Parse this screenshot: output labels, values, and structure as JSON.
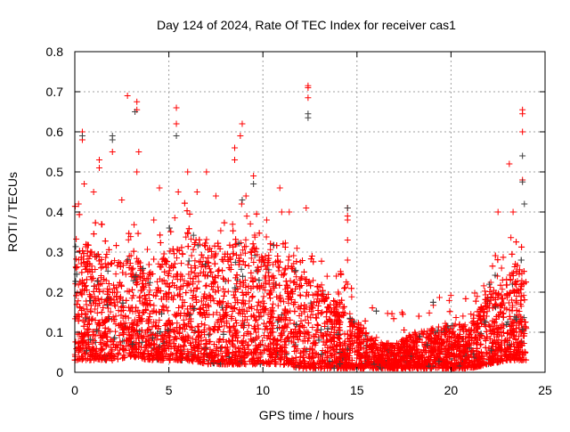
{
  "chart_data": {
    "type": "scatter",
    "title": "Day 124 of 2024, Rate Of TEC Index for receiver cas1",
    "xlabel": "GPS time / hours",
    "ylabel": "ROTI / TECUs",
    "xlim": [
      0,
      25
    ],
    "ylim": [
      0,
      0.8
    ],
    "xticks": [
      0,
      5,
      10,
      15,
      20,
      25
    ],
    "xtick_labels": [
      "0",
      "5",
      "10",
      "15",
      "20",
      "25"
    ],
    "yticks": [
      0,
      0.1,
      0.2,
      0.3,
      0.4,
      0.5,
      0.6,
      0.7,
      0.8
    ],
    "ytick_labels": [
      "0",
      "0.1",
      "0.2",
      "0.3",
      "0.4",
      "0.5",
      "0.6",
      "0.7",
      "0.8"
    ],
    "grid": true,
    "marker": "plus",
    "colors": {
      "primary": "#ff0000",
      "secondary": "#404040"
    },
    "dense_band": {
      "description_hours": [
        0,
        1,
        2,
        3,
        4,
        5,
        6,
        7,
        8,
        9,
        10,
        11,
        12,
        13,
        14,
        15,
        16,
        17,
        18,
        19,
        20,
        21,
        22,
        23,
        24
      ],
      "upper": [
        0.35,
        0.3,
        0.28,
        0.3,
        0.25,
        0.3,
        0.35,
        0.33,
        0.3,
        0.35,
        0.3,
        0.28,
        0.25,
        0.22,
        0.18,
        0.13,
        0.08,
        0.07,
        0.1,
        0.11,
        0.12,
        0.12,
        0.2,
        0.25,
        0.3
      ],
      "lower": [
        0.03,
        0.03,
        0.03,
        0.04,
        0.03,
        0.03,
        0.03,
        0.02,
        0.02,
        0.02,
        0.02,
        0.02,
        0.01,
        0.01,
        0.01,
        0.01,
        0.01,
        0.01,
        0.01,
        0.01,
        0.01,
        0.01,
        0.02,
        0.03,
        0.03
      ],
      "x_range": [
        0,
        24
      ],
      "points_per_hour": 260
    },
    "series": [
      {
        "name": "outliers-red",
        "color": "#ff0000",
        "points": [
          [
            0.4,
            0.6
          ],
          [
            0.4,
            0.58
          ],
          [
            2.8,
            0.69
          ],
          [
            3.3,
            0.675
          ],
          [
            3.3,
            0.655
          ],
          [
            5.4,
            0.66
          ],
          [
            5.4,
            0.62
          ],
          [
            8.9,
            0.62
          ],
          [
            8.8,
            0.59
          ],
          [
            12.4,
            0.715
          ],
          [
            12.4,
            0.71
          ],
          [
            12.4,
            0.685
          ],
          [
            23.8,
            0.655
          ],
          [
            23.8,
            0.645
          ],
          [
            23.8,
            0.6
          ],
          [
            14.5,
            0.41
          ],
          [
            14.5,
            0.39
          ],
          [
            14.5,
            0.38
          ],
          [
            14.5,
            0.33
          ],
          [
            14.5,
            0.28
          ],
          [
            14.5,
            0.22
          ],
          [
            9.5,
            0.49
          ],
          [
            2.0,
            0.55
          ],
          [
            1.3,
            0.53
          ],
          [
            1.3,
            0.51
          ],
          [
            23.1,
            0.52
          ],
          [
            23.8,
            0.48
          ],
          [
            7.0,
            0.5
          ],
          [
            6.0,
            0.5
          ],
          [
            4.5,
            0.46
          ],
          [
            10.9,
            0.46
          ],
          [
            11.4,
            0.4
          ],
          [
            13.2,
            0.19
          ],
          [
            0.2,
            0.42
          ],
          [
            3.4,
            0.55
          ],
          [
            3.3,
            0.5
          ],
          [
            8.5,
            0.56
          ],
          [
            8.5,
            0.53
          ],
          [
            5.5,
            0.45
          ],
          [
            6.5,
            0.45
          ],
          [
            7.5,
            0.44
          ],
          [
            9.1,
            0.44
          ],
          [
            12.3,
            0.41
          ],
          [
            22.5,
            0.4
          ],
          [
            23.3,
            0.4
          ],
          [
            13.9,
            0.24
          ],
          [
            14.0,
            0.2
          ],
          [
            1.0,
            0.45
          ],
          [
            0.5,
            0.47
          ],
          [
            2.5,
            0.43
          ],
          [
            4.2,
            0.38
          ],
          [
            10.2,
            0.38
          ],
          [
            11.0,
            0.4
          ]
        ]
      },
      {
        "name": "outliers-dark",
        "color": "#404040",
        "points": [
          [
            12.4,
            0.645
          ],
          [
            12.4,
            0.635
          ],
          [
            3.2,
            0.65
          ],
          [
            5.4,
            0.59
          ],
          [
            2.0,
            0.59
          ],
          [
            2.0,
            0.58
          ],
          [
            23.8,
            0.54
          ],
          [
            23.8,
            0.475
          ],
          [
            14.5,
            0.41
          ],
          [
            0.4,
            0.59
          ],
          [
            8.9,
            0.43
          ],
          [
            9.5,
            0.47
          ],
          [
            23.9,
            0.42
          ]
        ]
      }
    ]
  }
}
